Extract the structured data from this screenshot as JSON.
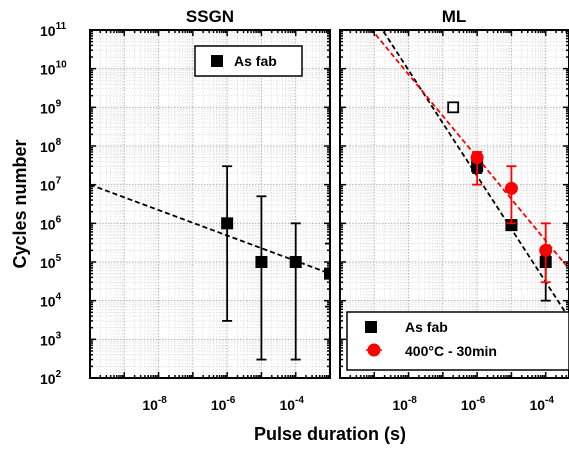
{
  "chart_data": [
    {
      "type": "scatter",
      "title": "SSGN",
      "xlabel": "Pulse duration (s)",
      "ylabel": "Cycles number",
      "x_scale": "log",
      "y_scale": "log",
      "xlim": [
        1e-10,
        0.001
      ],
      "ylim": [
        100.0,
        100000000000.0
      ],
      "x_ticks": [
        "10-8",
        "10-6",
        "10-4"
      ],
      "y_ticks": [
        "102",
        "103",
        "104",
        "105",
        "106",
        "107",
        "108",
        "109",
        "1010",
        "1011"
      ],
      "grid": true,
      "legend_position": "top-right",
      "series": [
        {
          "name": "As fab",
          "color": "#000000",
          "marker": "square",
          "points": [
            {
              "x": 1e-06,
              "y": 1000000.0,
              "y_low": 3000.0,
              "y_high": 30000000.0
            },
            {
              "x": 1e-05,
              "y": 100000.0,
              "y_low": 300.0,
              "y_high": 5000000.0
            },
            {
              "x": 0.0001,
              "y": 100000.0,
              "y_low": 300.0,
              "y_high": 1000000.0
            },
            {
              "x": 0.001,
              "y": 50000.0,
              "y_low": 7000.0,
              "y_high": 300000.0
            }
          ],
          "fit": {
            "x": [
              1e-10,
              0.001
            ],
            "y": [
              10000000.0,
              50000.0
            ],
            "style": "dashed",
            "color": "#000000"
          }
        }
      ]
    },
    {
      "type": "scatter",
      "title": "ML",
      "xlabel": "Pulse duration (s)",
      "x_scale": "log",
      "y_scale": "log",
      "xlim": [
        1e-10,
        0.001
      ],
      "ylim": [
        100.0,
        100000000000.0
      ],
      "x_ticks": [
        "10-8",
        "10-6",
        "10-4"
      ],
      "grid": true,
      "legend_position": "bottom-right",
      "series": [
        {
          "name": "As fab",
          "color": "#000000",
          "marker": "square",
          "points": [
            {
              "x": 1e-06,
              "y": 30000000.0,
              "y_low": 20000000.0,
              "y_high": 40000000.0
            },
            {
              "x": 1e-05,
              "y": 900000.0,
              "y_low": 800000.0,
              "y_high": 1000000.0
            },
            {
              "x": 0.0001,
              "y": 100000.0,
              "y_low": 10000.0,
              "y_high": 150000.0
            },
            {
              "x": 0.001,
              "y": 3000.0,
              "y_low": 2500.0,
              "y_high": 3500.0
            }
          ],
          "open_points": [
            {
              "x": 2e-07,
              "y": 1000000000.0
            }
          ],
          "fit": {
            "x": [
              1e-10,
              0.001
            ],
            "y": [
              5000000000000.0,
              1300.0
            ],
            "style": "dashed",
            "color": "#000000"
          }
        },
        {
          "name": "400°C - 30min",
          "color": "#ff0000",
          "marker": "circle",
          "points": [
            {
              "x": 1e-06,
              "y": 50000000.0,
              "y_low": 10000000.0,
              "y_high": 70000000.0
            },
            {
              "x": 1e-05,
              "y": 8000000.0,
              "y_low": 1000000.0,
              "y_high": 30000000.0
            },
            {
              "x": 0.0001,
              "y": 200000.0,
              "y_low": 30000.0,
              "y_high": 1000000.0
            },
            {
              "x": 0.001,
              "y": 30000.0,
              "y_low": 10000.0,
              "y_high": 700000.0
            }
          ],
          "fit": {
            "x": [
              1e-10,
              0.001
            ],
            "y": [
              1000000000000.0,
              30000.0
            ],
            "style": "dashed",
            "color": "#ff0000"
          }
        }
      ]
    }
  ],
  "legend_left": {
    "label": "As fab"
  },
  "legend_right": {
    "label_1": "As fab",
    "label_2": "400°C - 30min"
  }
}
